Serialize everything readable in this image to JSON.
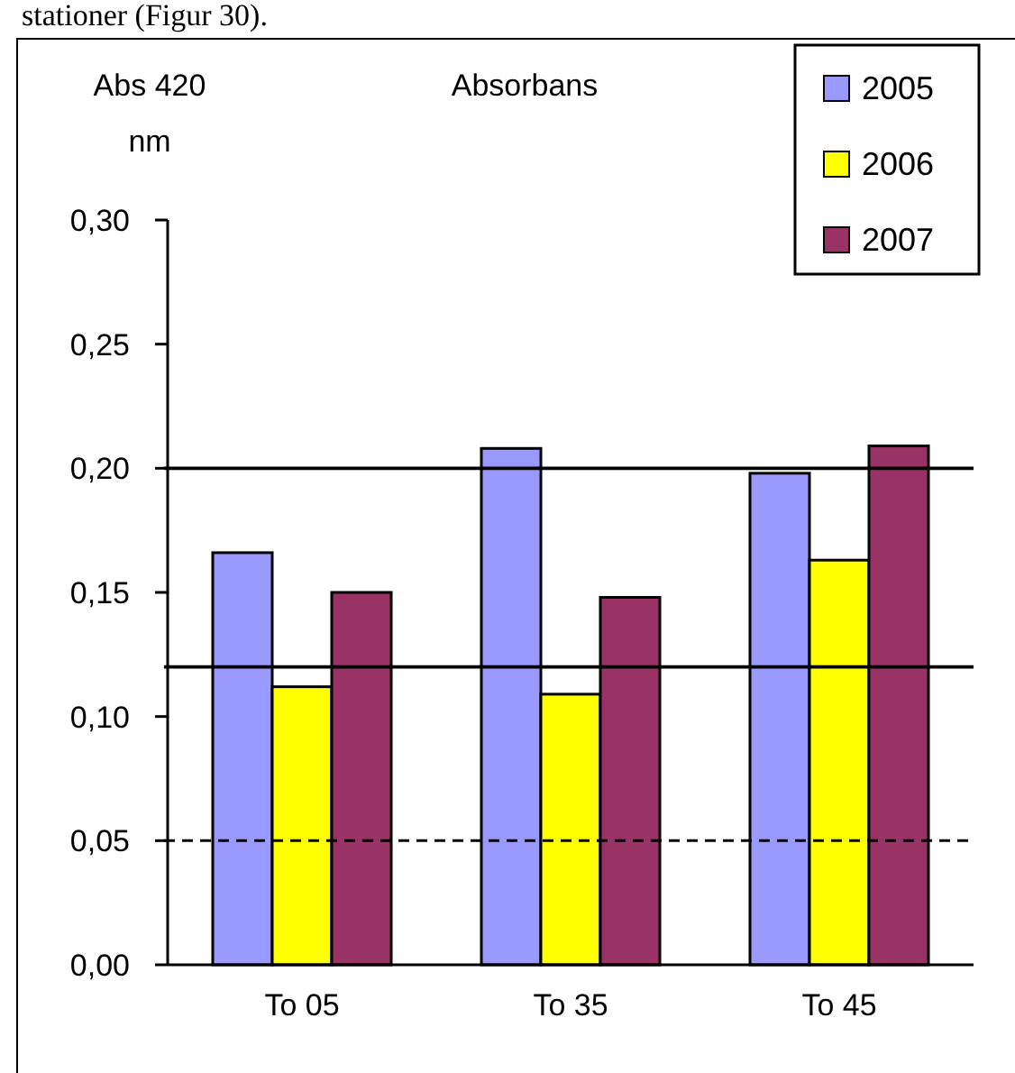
{
  "chart_data": {
    "type": "bar",
    "title": "Absorbans",
    "ylabel": "Abs 420 nm",
    "annotations": [
      "stationer (Figur 30)."
    ],
    "categories": [
      "To 05",
      "To 35",
      "To 45"
    ],
    "series": [
      {
        "name": "2005",
        "color": "#9999ff",
        "values": [
          0.166,
          0.208,
          0.198
        ]
      },
      {
        "name": "2006",
        "color": "#ffff00",
        "values": [
          0.112,
          0.109,
          0.163
        ]
      },
      {
        "name": "2007",
        "color": "#993366",
        "values": [
          0.15,
          0.148,
          0.209
        ]
      }
    ],
    "ylim": [
      0,
      0.3
    ],
    "yticks": [
      {
        "value": 0,
        "label": "0,00"
      },
      {
        "value": 0.05,
        "label": "0,05"
      },
      {
        "value": 0.1,
        "label": "0,10"
      },
      {
        "value": 0.15,
        "label": "0,15"
      },
      {
        "value": 0.2,
        "label": "0,20"
      },
      {
        "value": 0.25,
        "label": "0,25"
      },
      {
        "value": 0.3,
        "label": "0,30"
      }
    ],
    "ref_lines": [
      {
        "axis": "y",
        "value": 0.2,
        "color": "#000000",
        "line_style": "solid"
      },
      {
        "axis": "y",
        "value": 0.12,
        "color": "#000000",
        "line_style": "solid"
      },
      {
        "axis": "y",
        "value": 0.05,
        "color": "#000000",
        "line_style": "dashed"
      }
    ],
    "legend": "top right",
    "grid": false
  }
}
